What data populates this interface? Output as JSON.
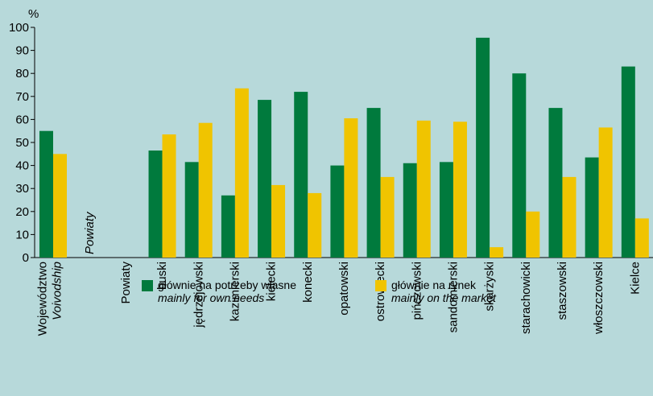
{
  "chart_data": {
    "type": "bar",
    "unit_label": "%",
    "ylim": [
      0,
      100
    ],
    "yticks": [
      0,
      10,
      20,
      30,
      40,
      50,
      60,
      70,
      80,
      90,
      100
    ],
    "categories": [
      {
        "label": "Województwo",
        "sublabel": "Voivodship"
      },
      {
        "label": "",
        "sublabel": "Powiaty"
      },
      {
        "label": "Powiaty",
        "sublabel": ""
      },
      {
        "label": "buski",
        "sublabel": ""
      },
      {
        "label": "jędrzejowski",
        "sublabel": ""
      },
      {
        "label": "kazimierski",
        "sublabel": ""
      },
      {
        "label": "kielecki",
        "sublabel": ""
      },
      {
        "label": "konecki",
        "sublabel": ""
      },
      {
        "label": "opatowski",
        "sublabel": ""
      },
      {
        "label": "ostrowiecki",
        "sublabel": ""
      },
      {
        "label": "pińczowski",
        "sublabel": ""
      },
      {
        "label": "sandomierski",
        "sublabel": ""
      },
      {
        "label": "skarżyski",
        "sublabel": ""
      },
      {
        "label": "starachowicki",
        "sublabel": ""
      },
      {
        "label": "staszowski",
        "sublabel": ""
      },
      {
        "label": "włoszczowski",
        "sublabel": ""
      },
      {
        "label": "Kielce",
        "sublabel": ""
      }
    ],
    "series": [
      {
        "name": "głównie na potrzeby własne",
        "name_en": "mainly for own needs",
        "color": "#007a3d",
        "values": [
          55,
          null,
          null,
          46.5,
          41.5,
          27,
          68.5,
          72,
          40,
          65,
          41,
          41.5,
          95.5,
          80,
          65,
          43.5,
          83
        ]
      },
      {
        "name": "głównie na rynek",
        "name_en": "mainly on the market",
        "color": "#f0c400",
        "values": [
          45,
          null,
          null,
          53.5,
          58.5,
          73.5,
          31.5,
          28,
          60.5,
          35,
          59.5,
          59,
          4.5,
          20,
          35,
          56.5,
          17
        ]
      }
    ],
    "grid": false,
    "legend_position": "bottom"
  }
}
